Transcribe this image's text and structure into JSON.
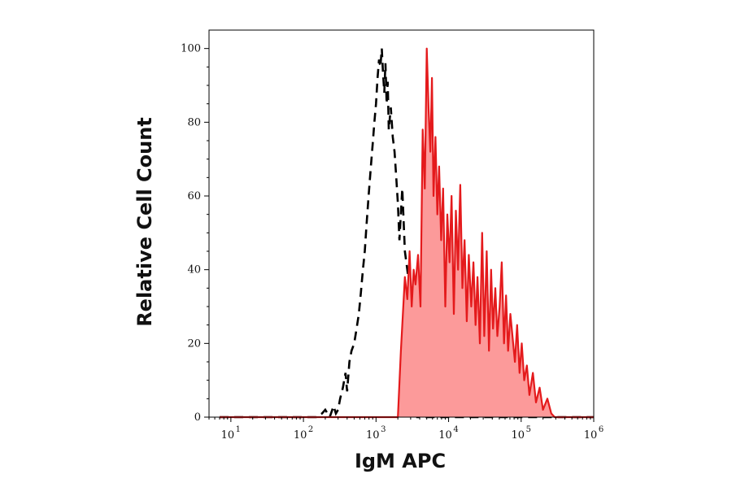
{
  "chart_data": {
    "type": "area",
    "xlabel": "IgM APC",
    "ylabel": "Relative Cell Count",
    "x_scale": "log",
    "xlim": [
      5,
      1000000
    ],
    "ylim": [
      0,
      105
    ],
    "x_ticks": [
      {
        "base": "10",
        "exp": "1",
        "value": 10
      },
      {
        "base": "10",
        "exp": "2",
        "value": 100
      },
      {
        "base": "10",
        "exp": "3",
        "value": 1000
      },
      {
        "base": "10",
        "exp": "4",
        "value": 10000
      },
      {
        "base": "10",
        "exp": "5",
        "value": 100000
      },
      {
        "base": "10",
        "exp": "6",
        "value": 1000000
      }
    ],
    "y_ticks": [
      {
        "label": "0",
        "value": 0
      },
      {
        "label": "20",
        "value": 20
      },
      {
        "label": "40",
        "value": 40
      },
      {
        "label": "60",
        "value": 60
      },
      {
        "label": "80",
        "value": 80
      },
      {
        "label": "100",
        "value": 100
      }
    ],
    "series": [
      {
        "style": "dashed-line",
        "color": "#000000",
        "x": [
          7,
          150,
          180,
          200,
          230,
          260,
          280,
          300,
          320,
          350,
          380,
          400,
          430,
          460,
          500,
          540,
          580,
          620,
          660,
          700,
          740,
          790,
          850,
          900,
          950,
          1000,
          1050,
          1100,
          1150,
          1200,
          1250,
          1300,
          1350,
          1400,
          1450,
          1500,
          1600,
          1700,
          1800,
          1900,
          2000,
          2100,
          2300,
          2500,
          2700,
          2900,
          3100,
          3300,
          3500,
          3600,
          3700,
          1000000
        ],
        "y": [
          0,
          0,
          1,
          2,
          0,
          3,
          1,
          2,
          5,
          8,
          12,
          7,
          15,
          18,
          20,
          24,
          28,
          34,
          40,
          45,
          52,
          60,
          68,
          74,
          80,
          85,
          92,
          97,
          95,
          100,
          93,
          88,
          96,
          85,
          91,
          78,
          84,
          76,
          72,
          65,
          58,
          48,
          62,
          45,
          40,
          35,
          28,
          22,
          10,
          3,
          0,
          0
        ]
      },
      {
        "style": "filled",
        "color": "#e41a1c",
        "fill": "#fc9a9a",
        "x": [
          7,
          2000,
          2200,
          2500,
          2700,
          2900,
          3100,
          3300,
          3500,
          3800,
          4100,
          4400,
          4700,
          5000,
          5300,
          5600,
          5900,
          6200,
          6600,
          7000,
          7400,
          7900,
          8400,
          9000,
          9600,
          10300,
          11000,
          11800,
          12600,
          13500,
          14500,
          15500,
          16600,
          17800,
          19000,
          20500,
          22000,
          23500,
          25000,
          27000,
          29000,
          31000,
          33500,
          36000,
          38500,
          41000,
          44000,
          47000,
          50500,
          54000,
          58000,
          62000,
          66000,
          71000,
          76000,
          82000,
          88000,
          95000,
          102000,
          110000,
          120000,
          130000,
          145000,
          160000,
          180000,
          200000,
          230000,
          260000,
          290000,
          1000000
        ],
        "y": [
          0,
          0,
          18,
          38,
          32,
          45,
          30,
          40,
          36,
          44,
          30,
          78,
          62,
          100,
          84,
          72,
          92,
          60,
          76,
          55,
          68,
          48,
          62,
          30,
          55,
          42,
          60,
          28,
          56,
          40,
          63,
          35,
          48,
          26,
          44,
          30,
          42,
          25,
          38,
          20,
          50,
          22,
          45,
          18,
          40,
          24,
          35,
          22,
          30,
          42,
          20,
          33,
          18,
          28,
          22,
          15,
          25,
          12,
          20,
          10,
          14,
          6,
          12,
          4,
          8,
          2,
          5,
          1,
          0,
          0
        ]
      }
    ]
  }
}
